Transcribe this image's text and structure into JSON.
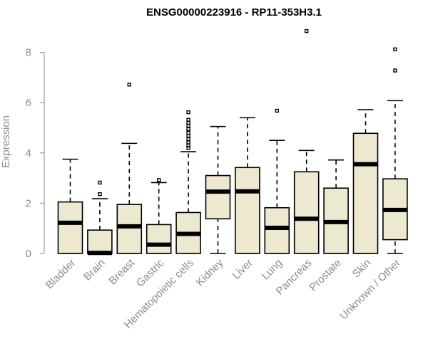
{
  "chart_data": {
    "type": "boxplot",
    "title": "ENSG00000223916 - RP11-353H3.1",
    "ylabel": "Expression",
    "xlabel": "",
    "ylim": [
      0,
      9
    ],
    "yticks": [
      0,
      2,
      4,
      6,
      8
    ],
    "colors": {
      "box_fill": "#ede8d0",
      "box_stroke": "#000000",
      "axis": "#8c8c8c"
    },
    "categories": [
      "Bladder",
      "Brain",
      "Breast",
      "Gastric",
      "Hematopoietic cells",
      "Kidney",
      "Liver",
      "Lung",
      "Pancreas",
      "Prostate",
      "Skin",
      "Unknown / Other"
    ],
    "boxes": [
      {
        "label": "Bladder",
        "min": 0.0,
        "q1": 0.0,
        "median": 1.22,
        "q3": 2.05,
        "max": 3.75,
        "outliers": []
      },
      {
        "label": "Brain",
        "min": 0.0,
        "q1": 0.0,
        "median": 0.02,
        "q3": 0.93,
        "max": 2.18,
        "outliers": [
          2.36,
          2.82
        ]
      },
      {
        "label": "Breast",
        "min": 0.0,
        "q1": 0.0,
        "median": 1.08,
        "q3": 1.95,
        "max": 4.38,
        "outliers": [
          6.72
        ]
      },
      {
        "label": "Gastric",
        "min": 0.0,
        "q1": 0.0,
        "median": 0.35,
        "q3": 1.15,
        "max": 2.82,
        "outliers": [
          2.92
        ]
      },
      {
        "label": "Hematopoietic cells",
        "min": 0.0,
        "q1": 0.0,
        "median": 0.78,
        "q3": 1.63,
        "max": 4.05,
        "outliers": [
          4.2,
          4.3,
          4.42,
          4.55,
          4.68,
          4.8,
          4.95,
          5.08,
          5.2,
          5.32,
          5.62
        ]
      },
      {
        "label": "Kidney",
        "min": 0.0,
        "q1": 1.38,
        "median": 2.46,
        "q3": 3.1,
        "max": 5.05,
        "outliers": []
      },
      {
        "label": "Liver",
        "min": 0.0,
        "q1": 0.0,
        "median": 2.47,
        "q3": 3.42,
        "max": 5.4,
        "outliers": []
      },
      {
        "label": "Lung",
        "min": 0.0,
        "q1": 0.0,
        "median": 1.02,
        "q3": 1.82,
        "max": 4.5,
        "outliers": [
          5.68
        ]
      },
      {
        "label": "Pancreas",
        "min": 0.0,
        "q1": 0.0,
        "median": 1.38,
        "q3": 3.25,
        "max": 4.1,
        "outliers": [
          8.85
        ]
      },
      {
        "label": "Prostate",
        "min": 0.0,
        "q1": 0.0,
        "median": 1.25,
        "q3": 2.6,
        "max": 3.72,
        "outliers": []
      },
      {
        "label": "Skin",
        "min": 0.0,
        "q1": 0.0,
        "median": 3.55,
        "q3": 4.78,
        "max": 5.72,
        "outliers": []
      },
      {
        "label": "Unknown / Other",
        "min": 0.0,
        "q1": 0.55,
        "median": 1.73,
        "q3": 2.97,
        "max": 6.08,
        "outliers": [
          7.28,
          8.12
        ]
      }
    ]
  }
}
